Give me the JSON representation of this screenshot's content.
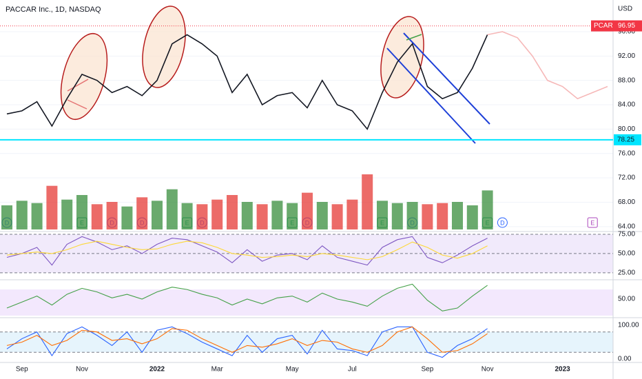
{
  "chart_data": [
    {
      "type": "line",
      "title": "PACCAR Inc., 1D, NASDAQ",
      "currency": "USD",
      "categories": [
        null,
        "Sep",
        null,
        null,
        null,
        "Nov",
        null,
        null,
        null,
        null,
        "2022",
        null,
        null,
        null,
        "Mar",
        null,
        null,
        null,
        null,
        "May",
        null,
        null,
        null,
        "Jul",
        null,
        null,
        null,
        null,
        "Sep",
        null,
        null,
        null,
        "Nov",
        null,
        null,
        null,
        null,
        "2023",
        null,
        null,
        null
      ],
      "series": [
        {
          "name": "PCAR",
          "color": "#131722",
          "values": [
            82.5,
            83,
            84.5,
            80.5,
            85,
            89,
            88,
            86,
            87,
            85.5,
            88,
            94,
            95.5,
            94,
            92,
            86,
            89,
            84,
            85.5,
            86,
            83.5,
            88,
            84,
            83,
            80,
            86,
            91,
            94,
            87,
            85,
            86,
            90,
            95.5,
            null,
            null,
            null,
            null,
            null,
            null,
            null,
            null
          ]
        },
        {
          "color": "#f6b8b8",
          "values": [
            null,
            null,
            null,
            null,
            null,
            null,
            null,
            null,
            null,
            null,
            null,
            null,
            null,
            null,
            null,
            null,
            null,
            null,
            null,
            null,
            null,
            null,
            null,
            null,
            null,
            null,
            null,
            null,
            null,
            null,
            null,
            null,
            95.5,
            96,
            95,
            92,
            88,
            87,
            85,
            86,
            87
          ]
        }
      ],
      "ylim": [
        63.3,
        101.2
      ],
      "yticks": [
        {
          "value": 64,
          "label": "64.00"
        },
        {
          "value": 68,
          "label": "68.00"
        },
        {
          "value": 72,
          "label": "72.00"
        },
        {
          "value": 76,
          "label": "76.00"
        },
        {
          "value": 80,
          "label": "80.00"
        },
        {
          "value": 84,
          "label": "84.00"
        },
        {
          "value": 88,
          "label": "88.00"
        },
        {
          "value": 92,
          "label": "92.00"
        },
        {
          "value": 96,
          "label": "96.00"
        }
      ],
      "hline": {
        "value": 78.25,
        "label": "78.25",
        "color": "#00e5ff"
      },
      "last_price": {
        "value": 96.95,
        "label": "96.95",
        "color": "#f23645"
      },
      "event_labels": [
        "D",
        null,
        null,
        null,
        null,
        "E",
        null,
        "D",
        null,
        "D",
        null,
        null,
        "E",
        "D",
        null,
        null,
        null,
        null,
        null,
        "E",
        "D",
        null,
        null,
        null,
        null,
        "E",
        null,
        "D",
        null,
        null,
        null,
        null,
        "E",
        "D",
        null,
        null,
        null,
        null,
        null,
        "E",
        null
      ]
    },
    {
      "type": "bar",
      "up_color": "#388e3c",
      "down_color": "#e53935",
      "values": [
        2.1,
        2.5,
        2.3,
        3.8,
        2.6,
        3.0,
        2.2,
        2.4,
        2.0,
        2.8,
        2.5,
        3.5,
        2.3,
        2.2,
        2.6,
        3.0,
        2.4,
        2.2,
        2.5,
        2.3,
        3.2,
        2.4,
        2.2,
        2.6,
        4.8,
        2.5,
        2.3,
        2.4,
        2.2,
        2.3,
        2.4,
        2.1,
        3.4
      ]
    },
    {
      "type": "line",
      "band_color": "#f1eafb",
      "ylim": [
        16.8,
        77.7
      ],
      "yticks": [
        {
          "value": 75,
          "label": "75.00"
        },
        {
          "value": 50,
          "label": "50.00"
        },
        {
          "value": 25,
          "label": "25.00"
        }
      ],
      "series": [
        {
          "color": "#7e57c2",
          "values": [
            45,
            50,
            58,
            35,
            62,
            72,
            65,
            55,
            60,
            50,
            62,
            70,
            68,
            60,
            52,
            38,
            55,
            40,
            48,
            50,
            42,
            60,
            45,
            40,
            35,
            58,
            68,
            72,
            45,
            38,
            48,
            60,
            70
          ]
        },
        {
          "color": "#fdd835",
          "values": [
            48,
            50,
            52,
            50,
            55,
            62,
            66,
            62,
            58,
            55,
            56,
            62,
            66,
            64,
            58,
            50,
            48,
            45,
            46,
            48,
            46,
            50,
            48,
            45,
            42,
            46,
            55,
            65,
            58,
            48,
            44,
            50,
            60
          ]
        }
      ]
    },
    {
      "type": "line",
      "band_color": "#f3e8fd",
      "ylim": [
        20,
        80
      ],
      "yticks": [
        {
          "value": 50,
          "label": "50.00"
        }
      ],
      "series": [
        {
          "color": "#43a047",
          "values": [
            35,
            45,
            55,
            40,
            58,
            68,
            62,
            52,
            58,
            50,
            62,
            70,
            66,
            58,
            52,
            40,
            50,
            42,
            52,
            55,
            45,
            60,
            50,
            45,
            38,
            55,
            68,
            75,
            48,
            30,
            35,
            55,
            73
          ]
        }
      ]
    },
    {
      "type": "line",
      "band_color": "#e6f4fc",
      "ylim": [
        -8,
        114
      ],
      "yticks": [
        {
          "value": 100,
          "label": "100.00"
        },
        {
          "value": 0,
          "label": "0.00"
        }
      ],
      "levels": [
        80,
        20
      ],
      "series": [
        {
          "color": "#2962ff",
          "values": [
            30,
            60,
            80,
            10,
            75,
            95,
            70,
            40,
            80,
            20,
            85,
            95,
            75,
            50,
            30,
            10,
            70,
            20,
            60,
            70,
            15,
            85,
            30,
            25,
            10,
            80,
            95,
            95,
            20,
            5,
            40,
            60,
            90
          ]
        },
        {
          "color": "#ff6d00",
          "values": [
            40,
            50,
            70,
            40,
            55,
            85,
            80,
            55,
            60,
            45,
            60,
            90,
            85,
            60,
            40,
            20,
            40,
            35,
            45,
            60,
            40,
            55,
            50,
            30,
            20,
            40,
            80,
            95,
            60,
            20,
            25,
            45,
            75
          ]
        }
      ]
    }
  ]
}
